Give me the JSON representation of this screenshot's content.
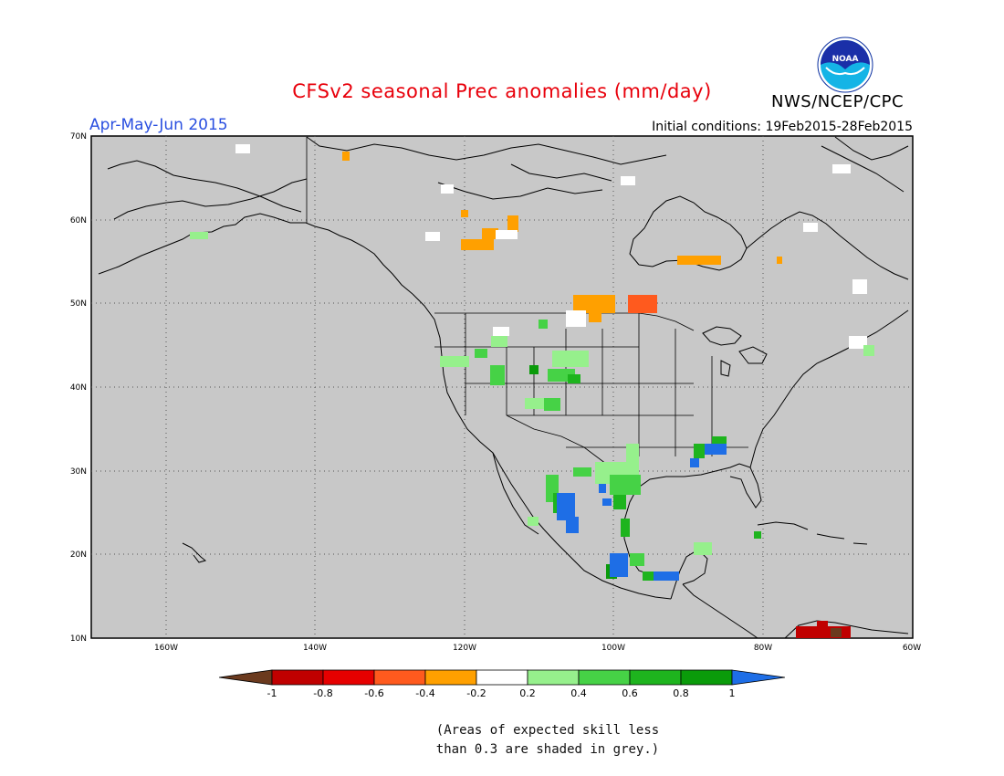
{
  "header": {
    "title": "CFSv2 seasonal Prec anomalies (mm/day)",
    "period": "Apr-May-Jun 2015",
    "initial_conditions": "Initial conditions: 19Feb2015-28Feb2015",
    "org": "NWS/NCEP/CPC",
    "logo_text": "NOAA"
  },
  "map": {
    "lon_ticks": [
      "160W",
      "140W",
      "120W",
      "100W",
      "80W",
      "60W"
    ],
    "lat_ticks": [
      "70N",
      "60N",
      "50N",
      "40N",
      "30N",
      "20N",
      "10N"
    ],
    "background_color": "#c8c8c8"
  },
  "legend": {
    "labels": [
      "-1",
      "-0.8",
      "-0.6",
      "-0.4",
      "-0.2",
      "0.2",
      "0.4",
      "0.6",
      "0.8",
      "1"
    ],
    "colors": [
      "#6b3a1e",
      "#c00000",
      "#e60000",
      "#ff5a1e",
      "#ffa000",
      "#ffffff",
      "#96f08c",
      "#46d246",
      "#1eb41e",
      "#0a9b0a",
      "#1e6ee6"
    ]
  },
  "footnote": {
    "line1": "(Areas of expected skill less",
    "line2": "than 0.3 are shaded in grey.)"
  }
}
